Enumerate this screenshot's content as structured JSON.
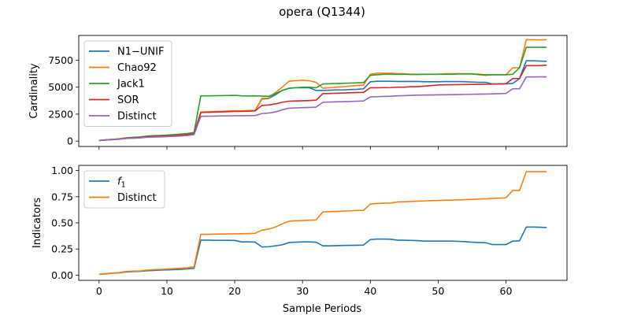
{
  "figure": {
    "title": "opera (Q1344)",
    "xlabel": "Sample Periods"
  },
  "chart_data": [
    {
      "type": "line",
      "ylabel": "Cardinality",
      "xlim": [
        -3,
        69
      ],
      "ylim": [
        -500,
        9800
      ],
      "xticks": [
        0,
        10,
        20,
        30,
        40,
        50,
        60
      ],
      "yticks": [
        0,
        2500,
        5000,
        7500
      ],
      "legend": "top-left",
      "x": [
        0,
        1,
        2,
        3,
        4,
        5,
        6,
        7,
        8,
        9,
        10,
        11,
        12,
        13,
        14,
        15,
        16,
        17,
        18,
        19,
        20,
        21,
        22,
        23,
        24,
        25,
        26,
        27,
        28,
        29,
        30,
        31,
        32,
        33,
        34,
        35,
        36,
        37,
        38,
        39,
        40,
        41,
        42,
        43,
        44,
        45,
        46,
        47,
        48,
        49,
        50,
        51,
        52,
        53,
        54,
        55,
        56,
        57,
        58,
        59,
        60,
        61,
        62,
        63,
        64,
        65,
        66
      ],
      "series": [
        {
          "name": "N1−UNIF",
          "color": "#1f77b4",
          "values": [
            50,
            110,
            150,
            200,
            280,
            320,
            350,
            420,
            450,
            470,
            500,
            520,
            560,
            620,
            700,
            2650,
            2680,
            2700,
            2720,
            2750,
            2780,
            2780,
            2800,
            2820,
            3900,
            3950,
            4300,
            4700,
            4900,
            4950,
            4950,
            4950,
            4700,
            4700,
            4720,
            4750,
            4750,
            4780,
            4800,
            4850,
            5500,
            5550,
            5550,
            5550,
            5530,
            5530,
            5530,
            5530,
            5500,
            5500,
            5500,
            5520,
            5520,
            5520,
            5500,
            5480,
            5450,
            5450,
            5300,
            5300,
            5300,
            5350,
            5800,
            7450,
            7450,
            7420,
            7400
          ]
        },
        {
          "name": "Chao92",
          "color": "#ff7f0e",
          "values": [
            60,
            120,
            160,
            210,
            300,
            330,
            360,
            430,
            460,
            480,
            520,
            540,
            580,
            650,
            750,
            2700,
            2720,
            2740,
            2760,
            2790,
            2810,
            2810,
            2830,
            2850,
            3950,
            4000,
            4500,
            5000,
            5550,
            5600,
            5650,
            5600,
            5450,
            4900,
            4950,
            5000,
            5050,
            5100,
            5150,
            5200,
            6200,
            6300,
            6300,
            6300,
            6250,
            6250,
            6200,
            6200,
            6200,
            6200,
            6200,
            6250,
            6250,
            6250,
            6250,
            6250,
            6150,
            6100,
            6150,
            6150,
            6150,
            6800,
            6800,
            9400,
            9400,
            9380,
            9400
          ]
        },
        {
          "name": "Jack1",
          "color": "#2ca02c",
          "values": [
            60,
            120,
            160,
            210,
            300,
            350,
            380,
            460,
            500,
            520,
            560,
            600,
            650,
            700,
            800,
            4200,
            4200,
            4210,
            4220,
            4230,
            4240,
            4200,
            4190,
            4200,
            4170,
            4150,
            4400,
            4700,
            4900,
            4950,
            5000,
            5000,
            4950,
            5300,
            5320,
            5340,
            5360,
            5380,
            5400,
            5420,
            6100,
            6150,
            6200,
            6200,
            6200,
            6200,
            6180,
            6180,
            6200,
            6200,
            6200,
            6200,
            6200,
            6220,
            6220,
            6220,
            6200,
            6150,
            6150,
            6150,
            6150,
            6200,
            6800,
            8700,
            8700,
            8700,
            8700
          ]
        },
        {
          "name": "SOR",
          "color": "#d62728",
          "values": [
            50,
            100,
            140,
            190,
            260,
            300,
            330,
            400,
            430,
            450,
            480,
            500,
            540,
            600,
            680,
            2650,
            2670,
            2690,
            2710,
            2730,
            2750,
            2750,
            2770,
            2800,
            3300,
            3350,
            3450,
            3600,
            3700,
            3720,
            3740,
            3760,
            3800,
            4400,
            4420,
            4440,
            4460,
            4480,
            4500,
            4520,
            4950,
            4950,
            4960,
            4970,
            5000,
            5000,
            5050,
            5050,
            5100,
            5150,
            5200,
            5220,
            5230,
            5240,
            5250,
            5260,
            5260,
            5270,
            5280,
            5300,
            5320,
            5800,
            5800,
            7000,
            7000,
            7000,
            7050
          ]
        },
        {
          "name": "Distinct",
          "color": "#9467bd",
          "values": [
            50,
            100,
            130,
            170,
            240,
            260,
            290,
            350,
            370,
            390,
            420,
            440,
            470,
            520,
            600,
            2300,
            2310,
            2320,
            2330,
            2340,
            2350,
            2350,
            2360,
            2370,
            2550,
            2600,
            2700,
            2900,
            3050,
            3080,
            3100,
            3120,
            3150,
            3600,
            3620,
            3640,
            3660,
            3680,
            3700,
            3720,
            4100,
            4120,
            4140,
            4160,
            4200,
            4220,
            4240,
            4260,
            4270,
            4280,
            4290,
            4300,
            4310,
            4320,
            4330,
            4340,
            4350,
            4360,
            4380,
            4400,
            4420,
            4850,
            4850,
            5950,
            5950,
            5960,
            5960
          ]
        }
      ]
    },
    {
      "type": "line",
      "ylabel": "Indicators",
      "xlim": [
        -3,
        69
      ],
      "ylim": [
        -0.05,
        1.05
      ],
      "xticks": [
        0,
        10,
        20,
        30,
        40,
        50,
        60
      ],
      "yticks": [
        0.0,
        0.25,
        0.5,
        0.75,
        1.0
      ],
      "ytick_labels": [
        "0.00",
        "0.25",
        "0.50",
        "0.75",
        "1.00"
      ],
      "xtick_labels": [
        "0",
        "10",
        "20",
        "30",
        "40",
        "50",
        "60"
      ],
      "legend": "top-left",
      "x": [
        0,
        1,
        2,
        3,
        4,
        5,
        6,
        7,
        8,
        9,
        10,
        11,
        12,
        13,
        14,
        15,
        16,
        17,
        18,
        19,
        20,
        21,
        22,
        23,
        24,
        25,
        26,
        27,
        28,
        29,
        30,
        31,
        32,
        33,
        34,
        35,
        36,
        37,
        38,
        39,
        40,
        41,
        42,
        43,
        44,
        45,
        46,
        47,
        48,
        49,
        50,
        51,
        52,
        53,
        54,
        55,
        56,
        57,
        58,
        59,
        60,
        61,
        62,
        63,
        64,
        65,
        66
      ],
      "series": [
        {
          "name": "f1",
          "color": "#1f77b4",
          "values": [
            0.008,
            0.012,
            0.018,
            0.022,
            0.03,
            0.034,
            0.036,
            0.042,
            0.045,
            0.048,
            0.05,
            0.052,
            0.056,
            0.06,
            0.065,
            0.335,
            0.335,
            0.333,
            0.333,
            0.333,
            0.332,
            0.318,
            0.318,
            0.316,
            0.27,
            0.272,
            0.28,
            0.29,
            0.312,
            0.315,
            0.318,
            0.318,
            0.315,
            0.28,
            0.28,
            0.282,
            0.284,
            0.285,
            0.286,
            0.288,
            0.34,
            0.345,
            0.345,
            0.343,
            0.335,
            0.334,
            0.332,
            0.33,
            0.325,
            0.325,
            0.325,
            0.325,
            0.325,
            0.323,
            0.32,
            0.315,
            0.312,
            0.31,
            0.292,
            0.292,
            0.292,
            0.325,
            0.328,
            0.46,
            0.46,
            0.458,
            0.455
          ]
        },
        {
          "name": "Distinct",
          "color": "#ff7f0e",
          "values": [
            0.008,
            0.015,
            0.02,
            0.025,
            0.035,
            0.038,
            0.04,
            0.048,
            0.052,
            0.055,
            0.058,
            0.062,
            0.066,
            0.07,
            0.08,
            0.39,
            0.39,
            0.392,
            0.393,
            0.394,
            0.395,
            0.396,
            0.398,
            0.4,
            0.43,
            0.44,
            0.46,
            0.49,
            0.515,
            0.52,
            0.522,
            0.525,
            0.528,
            0.605,
            0.607,
            0.61,
            0.612,
            0.615,
            0.618,
            0.62,
            0.68,
            0.685,
            0.688,
            0.69,
            0.7,
            0.702,
            0.705,
            0.708,
            0.71,
            0.712,
            0.714,
            0.716,
            0.718,
            0.72,
            0.722,
            0.724,
            0.728,
            0.73,
            0.734,
            0.737,
            0.74,
            0.81,
            0.81,
            0.99,
            0.99,
            0.99,
            0.99
          ]
        }
      ]
    }
  ]
}
